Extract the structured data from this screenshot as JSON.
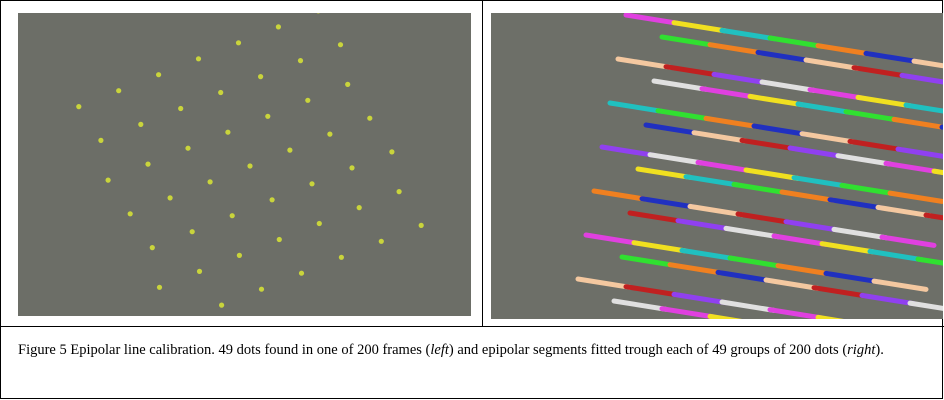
{
  "figure": {
    "caption_parts": [
      "Figure 5 Epipolar line calibration. 49 dots found in one of 200 frames (",
      "left",
      ") and epipolar segments fitted trough each of 49 groups of 200 dots (",
      "right",
      ")."
    ]
  }
}
